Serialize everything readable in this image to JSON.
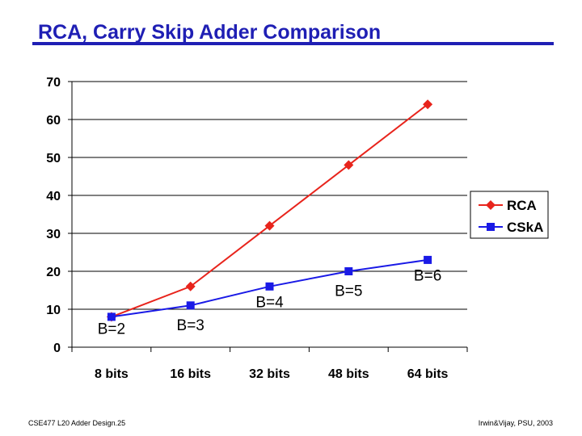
{
  "slide": {
    "title": "RCA, Carry Skip Adder Comparison",
    "footer_left": "CSE477  L20 Adder Design.25",
    "footer_right": "Irwin&Vijay, PSU, 2003"
  },
  "chart_data": {
    "type": "line",
    "title": "RCA, Carry Skip Adder Comparison",
    "xlabel": "",
    "ylabel": "",
    "categories": [
      "8 bits",
      "16 bits",
      "32 bits",
      "48 bits",
      "64 bits"
    ],
    "ylim": [
      0,
      70
    ],
    "yticks": [
      0,
      10,
      20,
      30,
      40,
      50,
      60,
      70
    ],
    "grid": true,
    "legend_position": "right",
    "series": [
      {
        "name": "RCA",
        "values": [
          8,
          16,
          32,
          48,
          64
        ],
        "color": "#e8241c",
        "marker": "diamond"
      },
      {
        "name": "CSkA",
        "values": [
          8,
          11,
          16,
          20,
          23
        ],
        "color": "#1a1ae6",
        "marker": "square"
      }
    ],
    "annotations": [
      {
        "text": "B=2",
        "category": "8 bits",
        "value": 5
      },
      {
        "text": "B=3",
        "category": "16 bits",
        "value": 6
      },
      {
        "text": "B=4",
        "category": "32 bits",
        "value": 12
      },
      {
        "text": "B=5",
        "category": "48 bits",
        "value": 15
      },
      {
        "text": "B=6",
        "category": "64 bits",
        "value": 19
      }
    ]
  }
}
